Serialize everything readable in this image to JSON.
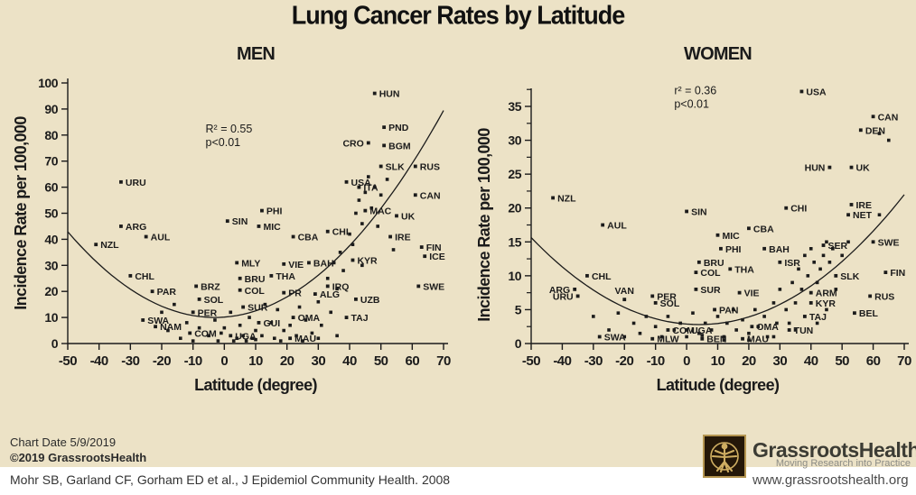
{
  "title": "Lung Cancer Rates by Latitude",
  "colors": {
    "background": "#ece2c6",
    "ink": "#1b1b1b",
    "strip": "#ffffff",
    "logo_gold": "#cfae62",
    "logo_dark": "#241708"
  },
  "chart_data": [
    {
      "type": "scatter",
      "name": "men",
      "title": "MEN",
      "annotation": [
        "R² = 0.55",
        "p<0.01"
      ],
      "annotation_pos": [
        -6,
        81
      ],
      "xlabel": "Latitude (degree)",
      "ylabel": "Incidence Rate per 100,000",
      "xlim": [
        -50,
        70
      ],
      "ylim": [
        0,
        100
      ],
      "xticks": [
        -50,
        -40,
        -30,
        -20,
        -10,
        0,
        10,
        20,
        30,
        40,
        50,
        60,
        70
      ],
      "yticks": [
        0,
        10,
        20,
        30,
        40,
        50,
        60,
        70,
        80,
        90,
        100
      ],
      "minor_yticks": [],
      "trend": {
        "shape": "quadratic",
        "a": 0.0149,
        "h": -3,
        "k": 10
      },
      "points": [
        {
          "label": "HUN",
          "x": 48,
          "y": 96
        },
        {
          "label": "PND",
          "x": 51,
          "y": 83
        },
        {
          "label": "CRO",
          "x": 46,
          "y": 77,
          "side": "l"
        },
        {
          "label": "BGM",
          "x": 51,
          "y": 76
        },
        {
          "label": "SLK",
          "x": 50,
          "y": 68
        },
        {
          "label": "RUS",
          "x": 61,
          "y": 68
        },
        {
          "label": "USA",
          "x": 39,
          "y": 62
        },
        {
          "label": "URU",
          "x": -33,
          "y": 62
        },
        {
          "label": "ITA",
          "x": 43,
          "y": 60
        },
        {
          "label": "CAN",
          "x": 61,
          "y": 57
        },
        {
          "label": "MAC",
          "x": 45,
          "y": 51
        },
        {
          "label": "PHI",
          "x": 12,
          "y": 51
        },
        {
          "label": "UK",
          "x": 55,
          "y": 49
        },
        {
          "label": "SIN",
          "x": 1,
          "y": 47
        },
        {
          "label": "ARG",
          "x": -33,
          "y": 45
        },
        {
          "label": "MIC",
          "x": 11,
          "y": 45
        },
        {
          "label": "CHI",
          "x": 33,
          "y": 43
        },
        {
          "label": "CBA",
          "x": 22,
          "y": 41
        },
        {
          "label": "AUL",
          "x": -25,
          "y": 41
        },
        {
          "label": "IRE",
          "x": 53,
          "y": 41
        },
        {
          "label": "NZL",
          "x": -41,
          "y": 38
        },
        {
          "label": "FIN",
          "x": 63,
          "y": 37
        },
        {
          "label": "ICE",
          "x": 64,
          "y": 33.5
        },
        {
          "label": "KYR",
          "x": 41,
          "y": 32
        },
        {
          "label": "MLY",
          "x": 4,
          "y": 31
        },
        {
          "label": "VIE",
          "x": 19,
          "y": 30.5
        },
        {
          "label": "BAH",
          "x": 27,
          "y": 31
        },
        {
          "label": "CHL",
          "x": -30,
          "y": 26
        },
        {
          "label": "THA",
          "x": 15,
          "y": 26
        },
        {
          "label": "BRU",
          "x": 5,
          "y": 25
        },
        {
          "label": "BRZ",
          "x": -9,
          "y": 22
        },
        {
          "label": "IRQ",
          "x": 33,
          "y": 22
        },
        {
          "label": "SWE",
          "x": 62,
          "y": 22
        },
        {
          "label": "COL",
          "x": 5,
          "y": 20.5
        },
        {
          "label": "PAR",
          "x": -23,
          "y": 20
        },
        {
          "label": "PR",
          "x": 19,
          "y": 19.5
        },
        {
          "label": "ALG",
          "x": 29,
          "y": 19
        },
        {
          "label": "SOL",
          "x": -8,
          "y": 17
        },
        {
          "label": "UZB",
          "x": 42,
          "y": 17
        },
        {
          "label": "SUR",
          "x": 6,
          "y": 14
        },
        {
          "label": "PER",
          "x": -10,
          "y": 12
        },
        {
          "label": "OMA",
          "x": 22,
          "y": 10
        },
        {
          "label": "TAJ",
          "x": 39,
          "y": 10
        },
        {
          "label": "SWA",
          "x": -26,
          "y": 9
        },
        {
          "label": "GUI",
          "x": 11,
          "y": 8
        },
        {
          "label": "NAM",
          "x": -22,
          "y": 6.5
        },
        {
          "label": "COM",
          "x": -11,
          "y": 4
        },
        {
          "label": "UGA",
          "x": 2,
          "y": 3
        },
        {
          "label": "MAU",
          "x": 21,
          "y": 2
        }
      ],
      "extra_points": [
        [
          -20,
          12
        ],
        [
          -16,
          15
        ],
        [
          -18,
          5
        ],
        [
          -14,
          2
        ],
        [
          -12,
          8
        ],
        [
          -10,
          1
        ],
        [
          -8,
          6
        ],
        [
          -5,
          3
        ],
        [
          -3,
          9
        ],
        [
          -2,
          1
        ],
        [
          0,
          6
        ],
        [
          2,
          12
        ],
        [
          3,
          1
        ],
        [
          5,
          7
        ],
        [
          6,
          3
        ],
        [
          8,
          10
        ],
        [
          9,
          2
        ],
        [
          10,
          5
        ],
        [
          12,
          3
        ],
        [
          13,
          15
        ],
        [
          15,
          8
        ],
        [
          16,
          2
        ],
        [
          17,
          13
        ],
        [
          19,
          5
        ],
        [
          21,
          7
        ],
        [
          23,
          3
        ],
        [
          24,
          14
        ],
        [
          26,
          9
        ],
        [
          28,
          4
        ],
        [
          30,
          16
        ],
        [
          31,
          7
        ],
        [
          33,
          25
        ],
        [
          34,
          12
        ],
        [
          35,
          31
        ],
        [
          36,
          21
        ],
        [
          37,
          35
        ],
        [
          38,
          28
        ],
        [
          40,
          42
        ],
        [
          41,
          38
        ],
        [
          42,
          50
        ],
        [
          43,
          55
        ],
        [
          44,
          46
        ],
        [
          45,
          58
        ],
        [
          46,
          64
        ],
        [
          47,
          52
        ],
        [
          48,
          60
        ],
        [
          49,
          45
        ],
        [
          50,
          57
        ],
        [
          52,
          63
        ],
        [
          54,
          36
        ],
        [
          44,
          30
        ],
        [
          36,
          3
        ],
        [
          30,
          2
        ],
        [
          25,
          1
        ],
        [
          18,
          1
        ],
        [
          10,
          1.5
        ],
        [
          4,
          2
        ],
        [
          -1,
          4
        ],
        [
          7,
          1
        ]
      ]
    },
    {
      "type": "scatter",
      "name": "women",
      "title": "WOMEN",
      "annotation": [
        "r² = 0.36",
        "p<0.01"
      ],
      "annotation_pos": [
        -4,
        36.8
      ],
      "xlabel": "Latitude (degree)",
      "ylabel": "Incidence Rate per 100,000",
      "xlim": [
        -50,
        70
      ],
      "ylim": [
        0,
        35
      ],
      "xticks": [
        -50,
        -40,
        -30,
        -20,
        -10,
        0,
        10,
        20,
        30,
        40,
        50,
        60,
        70
      ],
      "yticks": [
        0,
        5,
        10,
        15,
        20,
        25,
        30,
        35
      ],
      "minor_yticks": [
        2.5,
        7.5,
        12.5,
        17.5,
        22.5,
        27.5,
        32.5,
        37.5
      ],
      "trend": {
        "shape": "quadratic",
        "a": 0.0044,
        "h": 4,
        "k": 2.8
      },
      "points": [
        {
          "label": "USA",
          "x": 37,
          "y": 37.2
        },
        {
          "label": "CAN",
          "x": 60,
          "y": 33.5
        },
        {
          "label": "DEN",
          "x": 56,
          "y": 31.5
        },
        {
          "label": "HUN",
          "x": 46,
          "y": 26,
          "side": "l"
        },
        {
          "label": "UK",
          "x": 53,
          "y": 26
        },
        {
          "label": "NZL",
          "x": -43,
          "y": 21.5
        },
        {
          "label": "CHI",
          "x": 32,
          "y": 20
        },
        {
          "label": "IRE",
          "x": 53,
          "y": 20.5
        },
        {
          "label": "NET",
          "x": 52,
          "y": 19
        },
        {
          "label": "SIN",
          "x": 0,
          "y": 19.5
        },
        {
          "label": "AUL",
          "x": -27,
          "y": 17.5
        },
        {
          "label": "CBA",
          "x": 20,
          "y": 17
        },
        {
          "label": "MIC",
          "x": 10,
          "y": 16
        },
        {
          "label": "SER",
          "x": 44,
          "y": 14.5
        },
        {
          "label": "SWE",
          "x": 60,
          "y": 15
        },
        {
          "label": "PHI",
          "x": 11,
          "y": 14
        },
        {
          "label": "BAH",
          "x": 25,
          "y": 14
        },
        {
          "label": "BRU",
          "x": 4,
          "y": 12
        },
        {
          "label": "ISR",
          "x": 30,
          "y": 12
        },
        {
          "label": "THA",
          "x": 14,
          "y": 11
        },
        {
          "label": "COL",
          "x": 3,
          "y": 10.5
        },
        {
          "label": "FIN",
          "x": 64,
          "y": 10.5
        },
        {
          "label": "CHL",
          "x": -32,
          "y": 10
        },
        {
          "label": "SLK",
          "x": 48,
          "y": 10
        },
        {
          "label": "ARG",
          "x": -36,
          "y": 8,
          "side": "l"
        },
        {
          "label": "SUR",
          "x": 3,
          "y": 8
        },
        {
          "label": "ARM",
          "x": 40,
          "y": 7.5
        },
        {
          "label": "VIE",
          "x": 17,
          "y": 7.5
        },
        {
          "label": "URU",
          "x": -35,
          "y": 7,
          "side": "l"
        },
        {
          "label": "PER",
          "x": -11,
          "y": 7
        },
        {
          "label": "VAN",
          "x": -20,
          "y": 6.5,
          "side": "a"
        },
        {
          "label": "RUS",
          "x": 59,
          "y": 7
        },
        {
          "label": "SOL",
          "x": -10,
          "y": 6
        },
        {
          "label": "KYR",
          "x": 40,
          "y": 6
        },
        {
          "label": "PAN",
          "x": 9,
          "y": 5
        },
        {
          "label": "BEL",
          "x": 54,
          "y": 4.5
        },
        {
          "label": "TAJ",
          "x": 38,
          "y": 4
        },
        {
          "label": "COM",
          "x": -6,
          "y": 2
        },
        {
          "label": "UGA",
          "x": 0,
          "y": 2
        },
        {
          "label": "OMA",
          "x": 21,
          "y": 2.5
        },
        {
          "label": "TUN",
          "x": 33,
          "y": 2
        },
        {
          "label": "SWA",
          "x": -28,
          "y": 1
        },
        {
          "label": "MLW",
          "x": -11,
          "y": 0.7
        },
        {
          "label": "BEN",
          "x": 5,
          "y": 0.7
        },
        {
          "label": "MAU",
          "x": 18,
          "y": 0.7
        }
      ],
      "extra_points": [
        [
          -30,
          4
        ],
        [
          -25,
          2
        ],
        [
          -22,
          4.5
        ],
        [
          -20,
          1
        ],
        [
          -17,
          3
        ],
        [
          -15,
          1.5
        ],
        [
          -13,
          4
        ],
        [
          -10,
          2.5
        ],
        [
          -8,
          1
        ],
        [
          -6,
          4
        ],
        [
          -4,
          2
        ],
        [
          -2,
          3
        ],
        [
          0,
          1
        ],
        [
          2,
          4.5
        ],
        [
          4,
          1.5
        ],
        [
          6,
          3
        ],
        [
          8,
          2
        ],
        [
          10,
          4
        ],
        [
          12,
          1
        ],
        [
          13,
          3
        ],
        [
          15,
          5
        ],
        [
          16,
          2
        ],
        [
          18,
          3.5
        ],
        [
          20,
          1.5
        ],
        [
          22,
          5
        ],
        [
          23,
          2.5
        ],
        [
          25,
          4
        ],
        [
          26,
          1
        ],
        [
          28,
          6
        ],
        [
          29,
          3
        ],
        [
          30,
          8
        ],
        [
          32,
          5
        ],
        [
          33,
          3
        ],
        [
          34,
          9
        ],
        [
          35,
          6
        ],
        [
          36,
          11
        ],
        [
          37,
          8
        ],
        [
          38,
          13
        ],
        [
          39,
          10
        ],
        [
          40,
          14
        ],
        [
          41,
          12
        ],
        [
          42,
          9
        ],
        [
          43,
          11
        ],
        [
          44,
          13
        ],
        [
          45,
          15
        ],
        [
          46,
          12
        ],
        [
          47,
          14
        ],
        [
          48,
          8
        ],
        [
          50,
          13
        ],
        [
          52,
          15
        ],
        [
          62,
          31
        ],
        [
          65,
          30
        ],
        [
          62,
          19
        ],
        [
          45,
          5
        ],
        [
          42,
          3
        ],
        [
          35,
          2
        ],
        [
          28,
          1
        ],
        [
          20,
          0.5
        ],
        [
          12,
          0.5
        ],
        [
          5,
          1.2
        ]
      ]
    }
  ],
  "footer": {
    "chart_date": "Chart Date 5/9/2019",
    "copyright": "©2019 GrassrootsHealth",
    "citation": "Mohr SB, Garland CF, Gorham ED et al., J Epidemiol Community Health. 2008",
    "website": "www.grassrootshealth.org",
    "logo_text": "GrassrootsHealth",
    "logo_tagline": "Moving Research into Practice"
  }
}
